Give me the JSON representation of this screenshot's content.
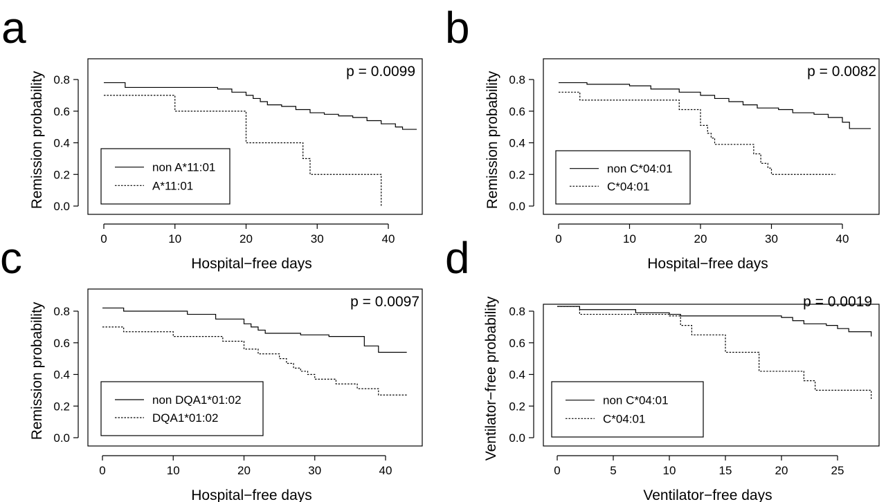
{
  "chart_data": [
    {
      "type": "line",
      "panel_label": "a",
      "xlabel": "Hospital−free days",
      "ylabel": "Remission probability",
      "xlim": [
        0,
        44
      ],
      "ylim": [
        0,
        0.8
      ],
      "xticks": [
        0,
        10,
        20,
        30,
        40
      ],
      "yticks": [
        "0.0",
        "0.2",
        "0.4",
        "0.6",
        "0.8"
      ],
      "annotation": "p = 0.0099",
      "legend_position": "bottom-left",
      "series": [
        {
          "name": "non A*11:01",
          "style": "solid",
          "steps": [
            [
              0,
              0.78
            ],
            [
              3,
              0.75
            ],
            [
              16,
              0.74
            ],
            [
              18,
              0.72
            ],
            [
              20,
              0.7
            ],
            [
              21,
              0.68
            ],
            [
              22,
              0.66
            ],
            [
              23,
              0.64
            ],
            [
              25,
              0.63
            ],
            [
              27,
              0.61
            ],
            [
              29,
              0.59
            ],
            [
              31,
              0.58
            ],
            [
              33,
              0.57
            ],
            [
              35,
              0.56
            ],
            [
              37,
              0.54
            ],
            [
              39,
              0.52
            ],
            [
              41,
              0.5
            ],
            [
              42,
              0.485
            ],
            [
              44,
              0.485
            ]
          ]
        },
        {
          "name": "A*11:01",
          "style": "dotted",
          "steps": [
            [
              0,
              0.7
            ],
            [
              10,
              0.6
            ],
            [
              20,
              0.4
            ],
            [
              28,
              0.3
            ],
            [
              29,
              0.2
            ],
            [
              39,
              0.0
            ],
            [
              39,
              0.0
            ]
          ]
        }
      ]
    },
    {
      "type": "line",
      "panel_label": "b",
      "xlabel": "Hospital−free days",
      "ylabel": "Remission probability",
      "xlim": [
        0,
        44
      ],
      "ylim": [
        0,
        0.8
      ],
      "xticks": [
        0,
        10,
        20,
        30,
        40
      ],
      "yticks": [
        "0.0",
        "0.2",
        "0.4",
        "0.6",
        "0.8"
      ],
      "annotation": "p = 0.0082",
      "legend_position": "bottom-left",
      "series": [
        {
          "name": "non C*04:01",
          "style": "solid",
          "steps": [
            [
              0,
              0.78
            ],
            [
              4,
              0.77
            ],
            [
              10,
              0.76
            ],
            [
              13,
              0.74
            ],
            [
              17,
              0.72
            ],
            [
              20,
              0.7
            ],
            [
              22,
              0.68
            ],
            [
              24,
              0.66
            ],
            [
              26,
              0.64
            ],
            [
              28,
              0.62
            ],
            [
              31,
              0.61
            ],
            [
              33,
              0.59
            ],
            [
              36,
              0.58
            ],
            [
              38,
              0.56
            ],
            [
              40,
              0.53
            ],
            [
              41,
              0.49
            ],
            [
              44,
              0.49
            ]
          ]
        },
        {
          "name": "C*04:01",
          "style": "dotted",
          "steps": [
            [
              0,
              0.72
            ],
            [
              3,
              0.67
            ],
            [
              17,
              0.61
            ],
            [
              20,
              0.51
            ],
            [
              21,
              0.46
            ],
            [
              21.5,
              0.43
            ],
            [
              22,
              0.39
            ],
            [
              27.5,
              0.33
            ],
            [
              28.5,
              0.27
            ],
            [
              29.5,
              0.24
            ],
            [
              30,
              0.2
            ],
            [
              39,
              0.2
            ]
          ]
        }
      ]
    },
    {
      "type": "line",
      "panel_label": "c",
      "xlabel": "Hospital−free days",
      "ylabel": "Remission probability",
      "xlim": [
        0,
        44
      ],
      "ylim": [
        0,
        0.8
      ],
      "xticks": [
        0,
        10,
        20,
        30,
        40
      ],
      "yticks": [
        "0.0",
        "0.2",
        "0.4",
        "0.6",
        "0.8"
      ],
      "annotation": "p = 0.0097",
      "legend_position": "bottom-left",
      "series": [
        {
          "name": "non DQA1*01:02",
          "style": "solid",
          "steps": [
            [
              0,
              0.82
            ],
            [
              3,
              0.8
            ],
            [
              12,
              0.78
            ],
            [
              16,
              0.75
            ],
            [
              20,
              0.72
            ],
            [
              21,
              0.7
            ],
            [
              22,
              0.68
            ],
            [
              23,
              0.66
            ],
            [
              28,
              0.65
            ],
            [
              32,
              0.64
            ],
            [
              37,
              0.58
            ],
            [
              39,
              0.54
            ],
            [
              43,
              0.54
            ]
          ]
        },
        {
          "name": "DQA1*01:02",
          "style": "dotted",
          "steps": [
            [
              0,
              0.7
            ],
            [
              3,
              0.67
            ],
            [
              10,
              0.64
            ],
            [
              17,
              0.61
            ],
            [
              20,
              0.56
            ],
            [
              22,
              0.53
            ],
            [
              25,
              0.5
            ],
            [
              26,
              0.47
            ],
            [
              27,
              0.44
            ],
            [
              28,
              0.42
            ],
            [
              29,
              0.4
            ],
            [
              30,
              0.37
            ],
            [
              33,
              0.34
            ],
            [
              36,
              0.31
            ],
            [
              39,
              0.27
            ],
            [
              43,
              0.27
            ]
          ]
        }
      ]
    },
    {
      "type": "line",
      "panel_label": "d",
      "xlabel": "Ventilator−free days",
      "ylabel": "Ventilator−free probability",
      "xlim": [
        0,
        28
      ],
      "ylim": [
        0,
        0.8
      ],
      "xticks": [
        0,
        5,
        10,
        15,
        20,
        25
      ],
      "yticks": [
        "0.0",
        "0.2",
        "0.4",
        "0.6",
        "0.8"
      ],
      "annotation": "p = 0.0019",
      "legend_position": "bottom-left",
      "series": [
        {
          "name": "non C*04:01",
          "style": "solid",
          "steps": [
            [
              0,
              0.83
            ],
            [
              2,
              0.81
            ],
            [
              7,
              0.79
            ],
            [
              10,
              0.78
            ],
            [
              11,
              0.77
            ],
            [
              20,
              0.76
            ],
            [
              21,
              0.74
            ],
            [
              22,
              0.72
            ],
            [
              24,
              0.71
            ],
            [
              25,
              0.69
            ],
            [
              26,
              0.67
            ],
            [
              28,
              0.64
            ]
          ]
        },
        {
          "name": "C*04:01",
          "style": "dotted",
          "steps": [
            [
              0,
              0.83
            ],
            [
              2,
              0.78
            ],
            [
              10,
              0.77
            ],
            [
              11,
              0.71
            ],
            [
              12,
              0.65
            ],
            [
              15,
              0.54
            ],
            [
              18,
              0.42
            ],
            [
              22,
              0.36
            ],
            [
              23,
              0.3
            ],
            [
              28,
              0.24
            ]
          ]
        }
      ]
    }
  ]
}
